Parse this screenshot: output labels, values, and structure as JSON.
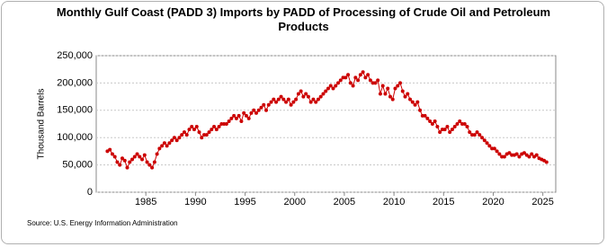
{
  "chart_data": {
    "type": "line",
    "title": "Monthly Gulf Coast (PADD 3) Imports by PADD of Processing of Crude Oil and Petroleum Products",
    "y_label": "Thousand Barrels",
    "source": "Source: U.S. Energy Information Administration",
    "xlim": [
      1980,
      2026.3
    ],
    "xticks": [
      1985,
      1990,
      1995,
      2000,
      2005,
      2010,
      2015,
      2020,
      2025
    ],
    "ylim": [
      0,
      250000
    ],
    "yticks": [
      0,
      {
        "value": 50000,
        "label": "50,000"
      },
      {
        "value": 100000,
        "label": "100,000"
      },
      {
        "value": 150000,
        "label": "150,000"
      },
      {
        "value": 200000,
        "label": "200,000"
      },
      {
        "value": 250000,
        "label": "250,000"
      }
    ],
    "grid": true,
    "series": [
      {
        "color": "#cc0000",
        "x": [
          1981.125,
          1981.375,
          1981.625,
          1981.875,
          1982.125,
          1982.375,
          1982.625,
          1982.875,
          1983.125,
          1983.375,
          1983.625,
          1983.875,
          1984.125,
          1984.375,
          1984.625,
          1984.875,
          1985.125,
          1985.375,
          1985.625,
          1985.875,
          1986.125,
          1986.375,
          1986.625,
          1986.875,
          1987.125,
          1987.375,
          1987.625,
          1987.875,
          1988.125,
          1988.375,
          1988.625,
          1988.875,
          1989.125,
          1989.375,
          1989.625,
          1989.875,
          1990.125,
          1990.375,
          1990.625,
          1990.875,
          1991.125,
          1991.375,
          1991.625,
          1991.875,
          1992.125,
          1992.375,
          1992.625,
          1992.875,
          1993.125,
          1993.375,
          1993.625,
          1993.875,
          1994.125,
          1994.375,
          1994.625,
          1994.875,
          1995.125,
          1995.375,
          1995.625,
          1995.875,
          1996.125,
          1996.375,
          1996.625,
          1996.875,
          1997.125,
          1997.375,
          1997.625,
          1997.875,
          1998.125,
          1998.375,
          1998.625,
          1998.875,
          1999.125,
          1999.375,
          1999.625,
          1999.875,
          2000.125,
          2000.375,
          2000.625,
          2000.875,
          2001.125,
          2001.375,
          2001.625,
          2001.875,
          2002.125,
          2002.375,
          2002.625,
          2002.875,
          2003.125,
          2003.375,
          2003.625,
          2003.875,
          2004.125,
          2004.375,
          2004.625,
          2004.875,
          2005.125,
          2005.375,
          2005.625,
          2005.875,
          2006.125,
          2006.375,
          2006.625,
          2006.875,
          2007.125,
          2007.375,
          2007.625,
          2007.875,
          2008.125,
          2008.375,
          2008.625,
          2008.875,
          2009.125,
          2009.375,
          2009.625,
          2009.875,
          2010.125,
          2010.375,
          2010.625,
          2010.875,
          2011.125,
          2011.375,
          2011.625,
          2011.875,
          2012.125,
          2012.375,
          2012.625,
          2012.875,
          2013.125,
          2013.375,
          2013.625,
          2013.875,
          2014.125,
          2014.375,
          2014.625,
          2014.875,
          2015.125,
          2015.375,
          2015.625,
          2015.875,
          2016.125,
          2016.375,
          2016.625,
          2016.875,
          2017.125,
          2017.375,
          2017.625,
          2017.875,
          2018.125,
          2018.375,
          2018.625,
          2018.875,
          2019.125,
          2019.375,
          2019.625,
          2019.875,
          2020.125,
          2020.375,
          2020.625,
          2020.875,
          2021.125,
          2021.375,
          2021.625,
          2021.875,
          2022.125,
          2022.375,
          2022.625,
          2022.875,
          2023.125,
          2023.375,
          2023.625,
          2023.875,
          2024.125,
          2024.375,
          2024.625,
          2024.875,
          2025.125,
          2025.375
        ],
        "values": [
          75000,
          78000,
          70000,
          65000,
          55000,
          50000,
          62000,
          58000,
          45000,
          55000,
          60000,
          65000,
          70000,
          65000,
          60000,
          68000,
          55000,
          50000,
          45000,
          55000,
          70000,
          80000,
          85000,
          90000,
          85000,
          90000,
          95000,
          100000,
          95000,
          100000,
          105000,
          110000,
          105000,
          115000,
          120000,
          115000,
          120000,
          110000,
          100000,
          105000,
          105000,
          110000,
          115000,
          120000,
          115000,
          120000,
          125000,
          125000,
          125000,
          130000,
          135000,
          140000,
          135000,
          140000,
          130000,
          145000,
          140000,
          135000,
          145000,
          150000,
          145000,
          150000,
          155000,
          160000,
          150000,
          160000,
          165000,
          170000,
          165000,
          170000,
          175000,
          170000,
          165000,
          170000,
          160000,
          165000,
          170000,
          180000,
          185000,
          175000,
          180000,
          175000,
          165000,
          170000,
          165000,
          170000,
          175000,
          180000,
          185000,
          190000,
          195000,
          190000,
          195000,
          200000,
          205000,
          210000,
          210000,
          215000,
          200000,
          195000,
          210000,
          205000,
          215000,
          220000,
          210000,
          215000,
          205000,
          200000,
          200000,
          205000,
          180000,
          195000,
          180000,
          190000,
          175000,
          170000,
          190000,
          195000,
          200000,
          185000,
          175000,
          180000,
          170000,
          165000,
          160000,
          165000,
          150000,
          140000,
          140000,
          135000,
          130000,
          125000,
          130000,
          120000,
          110000,
          115000,
          115000,
          120000,
          110000,
          115000,
          120000,
          125000,
          130000,
          125000,
          125000,
          120000,
          110000,
          105000,
          105000,
          110000,
          105000,
          100000,
          95000,
          90000,
          85000,
          80000,
          80000,
          75000,
          70000,
          65000,
          65000,
          70000,
          72000,
          68000,
          68000,
          70000,
          65000,
          70000,
          72000,
          68000,
          65000,
          70000,
          65000,
          68000,
          62000,
          60000,
          58000,
          55000
        ]
      }
    ]
  }
}
